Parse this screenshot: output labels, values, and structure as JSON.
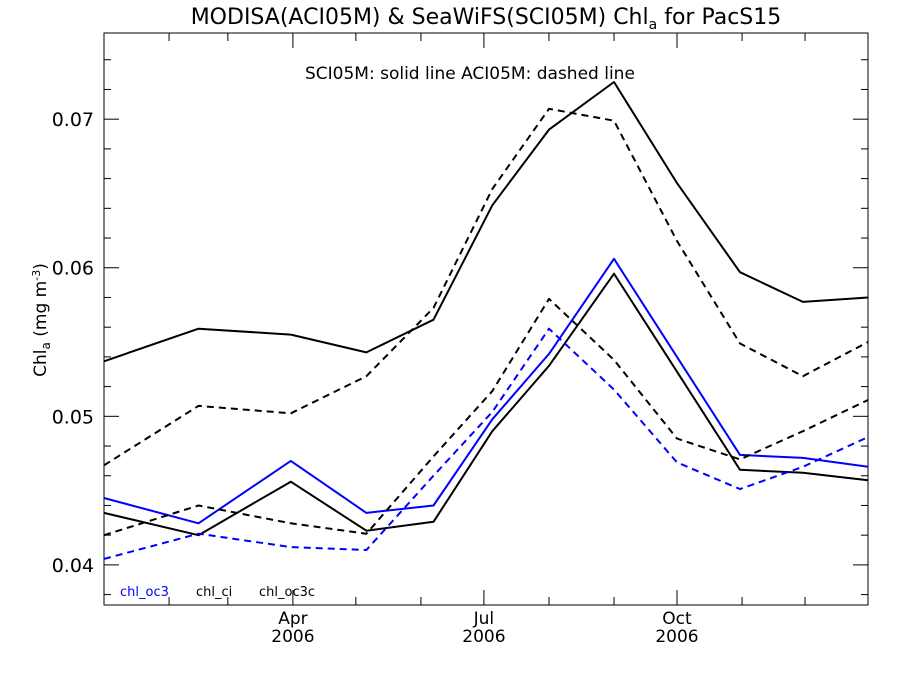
{
  "chart_data": {
    "type": "line",
    "title_main": "MODISA(ACI05M) & SeaWiFS(SCI05M)  Chl",
    "title_sub": "a",
    "title_tail": " for PacS15",
    "annotation": "SCI05M: solid line   ACI05M: dashed line",
    "ylabel_main": "Chl",
    "ylabel_sub": "a",
    "ylabel_unit": " (mg m",
    "ylabel_sup": "-3",
    "ylabel_close": ")",
    "ylim": [
      0.0373,
      0.0758
    ],
    "xlim": [
      "2006-01-01",
      "2006-12-31"
    ],
    "yticks": [
      {
        "value": 0.04,
        "label": "0.04"
      },
      {
        "value": 0.05,
        "label": "0.05"
      },
      {
        "value": 0.06,
        "label": "0.06"
      },
      {
        "value": 0.07,
        "label": "0.07"
      }
    ],
    "xticks": [
      {
        "date": "2006-04-01",
        "month": "Apr",
        "year": "2006"
      },
      {
        "date": "2006-07-01",
        "month": "Jul",
        "year": "2006"
      },
      {
        "date": "2006-10-01",
        "month": "Oct",
        "year": "2006"
      }
    ],
    "legend": [
      {
        "label": "chl_oc3",
        "color": "#0000ff"
      },
      {
        "label": "chl_ci",
        "color": "#000000"
      },
      {
        "label": "chl_oc3c",
        "color": "#000000"
      }
    ],
    "series": [
      {
        "product": "chl_oc3c",
        "sensor": "SCI05M",
        "style": "solid",
        "color": "#000000",
        "points": [
          [
            "2006-01-01",
            0.0537
          ],
          [
            "2006-02-15",
            0.0559
          ],
          [
            "2006-03-31",
            0.0555
          ],
          [
            "2006-05-06",
            0.0543
          ],
          [
            "2006-06-07",
            0.0565
          ],
          [
            "2006-07-05",
            0.0642
          ],
          [
            "2006-08-01",
            0.0693
          ],
          [
            "2006-09-01",
            0.0725
          ],
          [
            "2006-10-01",
            0.0657
          ],
          [
            "2006-10-31",
            0.0597
          ],
          [
            "2006-11-30",
            0.0577
          ],
          [
            "2006-12-31",
            0.058
          ]
        ]
      },
      {
        "product": "chl_oc3c",
        "sensor": "ACI05M",
        "style": "dashed",
        "color": "#000000",
        "points": [
          [
            "2006-01-01",
            0.0467
          ],
          [
            "2006-02-15",
            0.0507
          ],
          [
            "2006-03-31",
            0.0502
          ],
          [
            "2006-05-06",
            0.0527
          ],
          [
            "2006-06-07",
            0.0573
          ],
          [
            "2006-07-05",
            0.0653
          ],
          [
            "2006-08-01",
            0.0707
          ],
          [
            "2006-09-01",
            0.0699
          ],
          [
            "2006-10-01",
            0.0618
          ],
          [
            "2006-10-31",
            0.0549
          ],
          [
            "2006-11-30",
            0.0527
          ],
          [
            "2006-12-31",
            0.055
          ]
        ]
      },
      {
        "product": "chl_oc3",
        "sensor": "SCI05M",
        "style": "solid",
        "color": "#0000ff",
        "points": [
          [
            "2006-01-01",
            0.0445
          ],
          [
            "2006-02-15",
            0.0428
          ],
          [
            "2006-03-31",
            0.047
          ],
          [
            "2006-05-06",
            0.0435
          ],
          [
            "2006-06-07",
            0.044
          ],
          [
            "2006-07-05",
            0.0498
          ],
          [
            "2006-08-01",
            0.0542
          ],
          [
            "2006-09-01",
            0.0606
          ],
          [
            "2006-10-01",
            0.054
          ],
          [
            "2006-10-31",
            0.0474
          ],
          [
            "2006-11-30",
            0.0472
          ],
          [
            "2006-12-31",
            0.0466
          ]
        ]
      },
      {
        "product": "chl_ci",
        "sensor": "SCI05M",
        "style": "solid",
        "color": "#000000",
        "points": [
          [
            "2006-01-01",
            0.0435
          ],
          [
            "2006-02-15",
            0.042
          ],
          [
            "2006-03-31",
            0.0456
          ],
          [
            "2006-05-06",
            0.0423
          ],
          [
            "2006-06-07",
            0.0429
          ],
          [
            "2006-07-05",
            0.049
          ],
          [
            "2006-08-01",
            0.0534
          ],
          [
            "2006-09-01",
            0.0596
          ],
          [
            "2006-10-01",
            0.053
          ],
          [
            "2006-10-31",
            0.0464
          ],
          [
            "2006-11-30",
            0.0462
          ],
          [
            "2006-12-31",
            0.0457
          ]
        ]
      },
      {
        "product": "chl_ci",
        "sensor": "ACI05M",
        "style": "dashed",
        "color": "#000000",
        "points": [
          [
            "2006-01-01",
            0.042
          ],
          [
            "2006-02-15",
            0.044
          ],
          [
            "2006-03-31",
            0.0428
          ],
          [
            "2006-05-06",
            0.0421
          ],
          [
            "2006-06-07",
            0.0473
          ],
          [
            "2006-07-05",
            0.0517
          ],
          [
            "2006-08-01",
            0.0579
          ],
          [
            "2006-09-01",
            0.0538
          ],
          [
            "2006-10-01",
            0.0485
          ],
          [
            "2006-10-31",
            0.0471
          ],
          [
            "2006-11-30",
            0.049
          ],
          [
            "2006-12-31",
            0.0511
          ]
        ]
      },
      {
        "product": "chl_oc3",
        "sensor": "ACI05M",
        "style": "dashed",
        "color": "#0000ff",
        "points": [
          [
            "2006-01-01",
            0.0404
          ],
          [
            "2006-02-15",
            0.0421
          ],
          [
            "2006-03-31",
            0.0412
          ],
          [
            "2006-05-06",
            0.041
          ],
          [
            "2006-06-07",
            0.046
          ],
          [
            "2006-07-05",
            0.0503
          ],
          [
            "2006-08-01",
            0.0559
          ],
          [
            "2006-09-01",
            0.0518
          ],
          [
            "2006-10-01",
            0.0469
          ],
          [
            "2006-10-31",
            0.0451
          ],
          [
            "2006-11-30",
            0.0466
          ],
          [
            "2006-12-31",
            0.0486
          ]
        ]
      }
    ]
  }
}
